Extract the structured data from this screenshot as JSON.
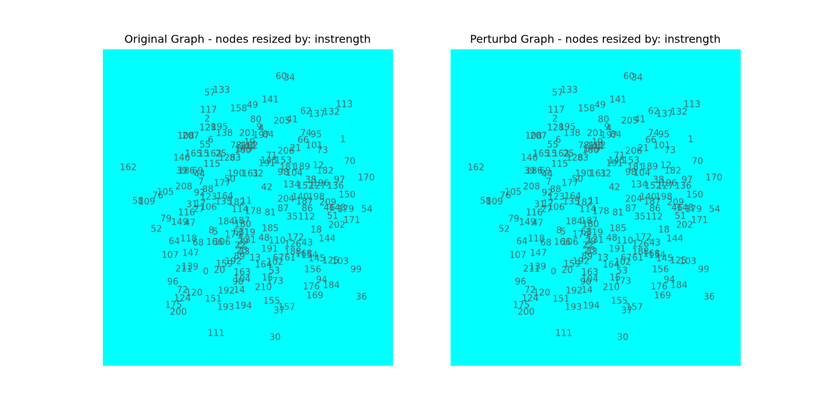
{
  "panels": [
    {
      "title": "Original Graph - nodes resized by: instrength",
      "nodes": [
        "60",
        "34",
        "57",
        "133",
        "141",
        "113",
        "158",
        "49",
        "62",
        "137",
        "132",
        "117",
        "80",
        "205",
        "41",
        "2",
        "9",
        "4",
        "201",
        "197",
        "84",
        "74",
        "95",
        "1",
        "128",
        "195",
        "138",
        "207",
        "108",
        "6",
        "55",
        "66",
        "101",
        "73",
        "19",
        "78",
        "122",
        "102",
        "206",
        "21",
        "165",
        "15",
        "162",
        "25",
        "128",
        "83",
        "160",
        "179",
        "71",
        "145",
        "153",
        "191",
        "70",
        "146",
        "12",
        "181",
        "189",
        "182",
        "115",
        "162",
        "39",
        "186",
        "69",
        "44",
        "190",
        "161",
        "32",
        "98",
        "104",
        "97",
        "170",
        "7",
        "177",
        "50",
        "38",
        "196",
        "208",
        "88",
        "42",
        "134",
        "152",
        "127",
        "136",
        "105",
        "76",
        "92",
        "123",
        "164",
        "204",
        "140",
        "198",
        "150",
        "58",
        "109",
        "31",
        "17",
        "106",
        "135",
        "182",
        "11",
        "209",
        "187",
        "46",
        "148",
        "179",
        "54",
        "114",
        "178",
        "81",
        "87",
        "86",
        "116",
        "27",
        "35",
        "112",
        "51",
        "171",
        "79",
        "149",
        "47",
        "184",
        "187",
        "180",
        "202",
        "52",
        "8",
        "5",
        "185",
        "18",
        "63",
        "174",
        "119",
        "131",
        "48",
        "172",
        "144",
        "64",
        "118",
        "68",
        "166",
        "106",
        "29",
        "22",
        "110",
        "126",
        "43",
        "191",
        "188",
        "168",
        "154",
        "107",
        "147",
        "23",
        "33",
        "89",
        "13",
        "67",
        "61",
        "145",
        "125",
        "103",
        "159",
        "192",
        "164",
        "102",
        "211",
        "139",
        "0",
        "20",
        "163",
        "53",
        "156",
        "99",
        "104",
        "90",
        "15",
        "173",
        "94",
        "96",
        "184",
        "176",
        "210",
        "72",
        "120",
        "192",
        "14",
        "169",
        "36",
        "124",
        "151",
        "155",
        "175",
        "193",
        "194",
        "157",
        "37",
        "200",
        "111",
        "30"
      ]
    },
    {
      "title": "Perturbd Graph - nodes resized by: instrength",
      "nodes": [
        "60",
        "34",
        "57",
        "133",
        "141",
        "113",
        "158",
        "49",
        "62",
        "137",
        "132",
        "117",
        "80",
        "205",
        "41",
        "2",
        "9",
        "4",
        "201",
        "197",
        "84",
        "74",
        "95",
        "1",
        "128",
        "195",
        "138",
        "207",
        "108",
        "6",
        "55",
        "66",
        "101",
        "73",
        "19",
        "78",
        "122",
        "102",
        "206",
        "21",
        "165",
        "15",
        "162",
        "25",
        "128",
        "83",
        "160",
        "179",
        "71",
        "145",
        "153",
        "191",
        "70",
        "146",
        "12",
        "181",
        "189",
        "182",
        "115",
        "162",
        "39",
        "186",
        "69",
        "44",
        "190",
        "161",
        "32",
        "98",
        "104",
        "97",
        "170",
        "7",
        "177",
        "50",
        "38",
        "196",
        "208",
        "88",
        "42",
        "134",
        "152",
        "127",
        "136",
        "105",
        "76",
        "92",
        "123",
        "164",
        "204",
        "140",
        "198",
        "150",
        "58",
        "109",
        "31",
        "17",
        "106",
        "135",
        "182",
        "11",
        "209",
        "187",
        "46",
        "148",
        "179",
        "54",
        "114",
        "178",
        "81",
        "87",
        "86",
        "116",
        "27",
        "35",
        "112",
        "51",
        "171",
        "79",
        "149",
        "47",
        "184",
        "187",
        "180",
        "202",
        "52",
        "8",
        "5",
        "185",
        "18",
        "63",
        "174",
        "119",
        "131",
        "48",
        "172",
        "144",
        "64",
        "118",
        "68",
        "166",
        "106",
        "29",
        "22",
        "110",
        "126",
        "43",
        "191",
        "188",
        "168",
        "154",
        "107",
        "147",
        "23",
        "33",
        "89",
        "13",
        "67",
        "61",
        "145",
        "125",
        "103",
        "159",
        "192",
        "164",
        "102",
        "211",
        "139",
        "0",
        "20",
        "163",
        "53",
        "156",
        "99",
        "104",
        "90",
        "15",
        "173",
        "94",
        "96",
        "184",
        "176",
        "210",
        "72",
        "120",
        "192",
        "14",
        "169",
        "36",
        "124",
        "151",
        "155",
        "175",
        "193",
        "194",
        "157",
        "37",
        "200",
        "111",
        "30"
      ]
    }
  ]
}
